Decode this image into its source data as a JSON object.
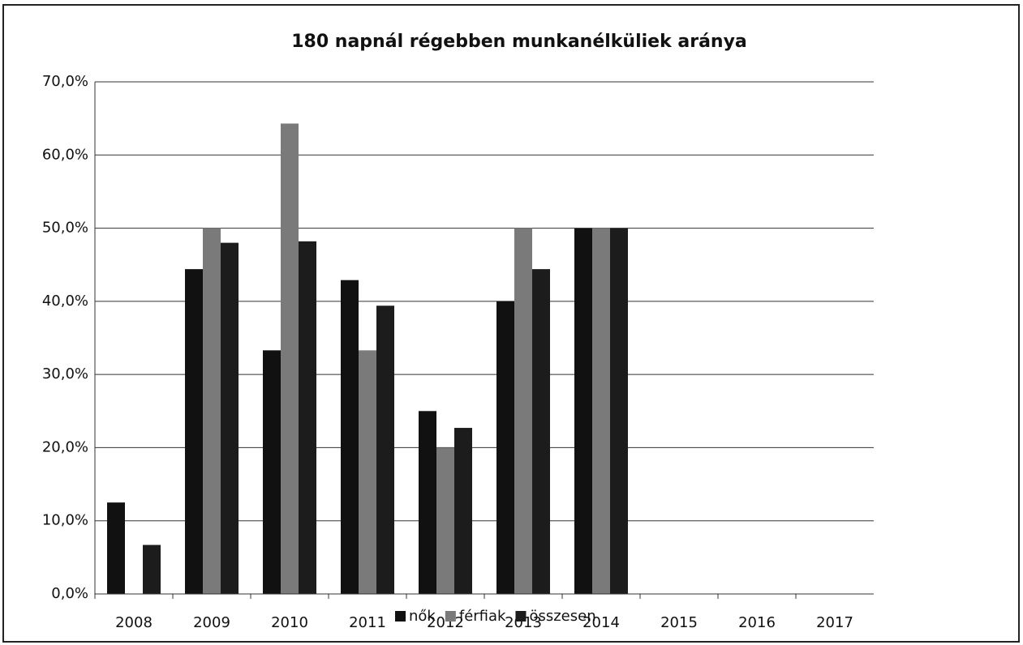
{
  "chart_data": {
    "type": "bar",
    "title": "180 napnál régebben munkanélküliek aránya",
    "categories": [
      "2008",
      "2009",
      "2010",
      "2011",
      "2012",
      "2013",
      "2014",
      "2015",
      "2016",
      "2017"
    ],
    "series": [
      {
        "name": "nők",
        "color": "#111111",
        "values": [
          12.5,
          44.4,
          33.3,
          42.9,
          25,
          40,
          50,
          null,
          null,
          null
        ]
      },
      {
        "name": "férfiak",
        "color": "#7a7a7a",
        "values": [
          0,
          50,
          64.3,
          33.3,
          20,
          50,
          50,
          null,
          null,
          null
        ]
      },
      {
        "name": "összesen",
        "color": "#1c1c1c",
        "values": [
          6.7,
          48,
          48.2,
          39.4,
          22.7,
          44.4,
          50,
          null,
          null,
          null
        ]
      }
    ],
    "ylim": [
      0,
      70
    ],
    "yticks": [
      {
        "value": 0,
        "label": "0,0%"
      },
      {
        "value": 10,
        "label": "10,0%"
      },
      {
        "value": 20,
        "label": "20,0%"
      },
      {
        "value": 30,
        "label": "30,0%"
      },
      {
        "value": 40,
        "label": "40,0%"
      },
      {
        "value": 50,
        "label": "50,0%"
      },
      {
        "value": 60,
        "label": "60,0%"
      },
      {
        "value": 70,
        "label": "70,0%"
      }
    ],
    "grid": true,
    "legend": "bottom"
  }
}
